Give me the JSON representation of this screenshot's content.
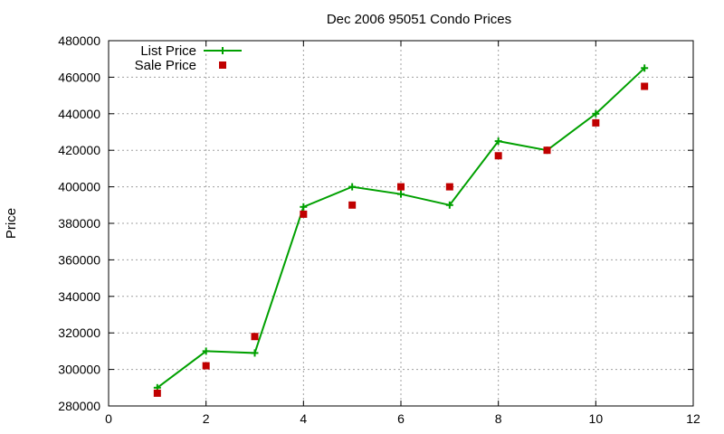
{
  "chart_data": {
    "type": "line",
    "title": "Dec 2006 95051 Condo Prices",
    "xlabel": "",
    "ylabel": "Price",
    "xlim": [
      0,
      12
    ],
    "ylim": [
      280000,
      480000
    ],
    "x_ticks": [
      0,
      2,
      4,
      6,
      8,
      10,
      12
    ],
    "y_ticks": [
      280000,
      300000,
      320000,
      340000,
      360000,
      380000,
      400000,
      420000,
      440000,
      460000,
      480000
    ],
    "grid": true,
    "legend_position": "top-left",
    "series": [
      {
        "name": "List Price",
        "style": "line-plus",
        "color": "#00a000",
        "points": [
          [
            1,
            290000
          ],
          [
            2,
            310000
          ],
          [
            3,
            309000
          ],
          [
            4,
            389000
          ],
          [
            5,
            400000
          ],
          [
            6,
            396000
          ],
          [
            7,
            390000
          ],
          [
            8,
            425000
          ],
          [
            9,
            420000
          ],
          [
            10,
            440000
          ],
          [
            11,
            465000
          ]
        ]
      },
      {
        "name": "Sale Price",
        "style": "square-marker",
        "color": "#c00000",
        "points": [
          [
            1,
            287000
          ],
          [
            2,
            302000
          ],
          [
            3,
            318000
          ],
          [
            4,
            385000
          ],
          [
            5,
            390000
          ],
          [
            6,
            400000
          ],
          [
            7,
            400000
          ],
          [
            8,
            417000
          ],
          [
            9,
            420000
          ],
          [
            10,
            435000
          ],
          [
            11,
            455000
          ]
        ]
      }
    ]
  }
}
